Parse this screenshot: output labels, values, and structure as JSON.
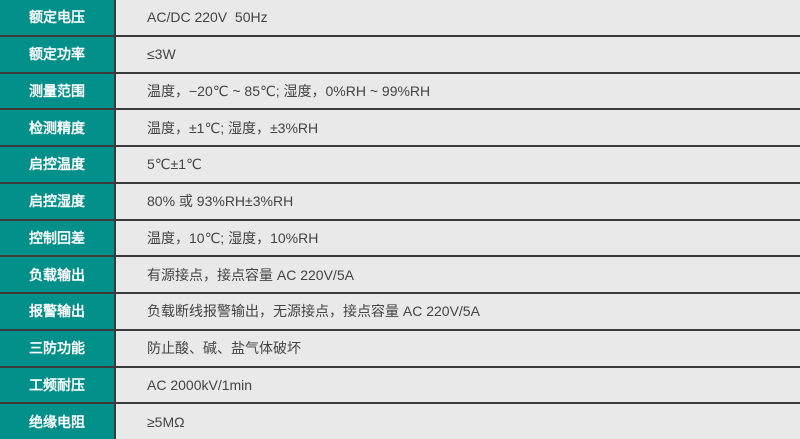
{
  "colors": {
    "label_bg": "#04908a",
    "value_bg": "#e9e9e9",
    "border": "#3a3a3a"
  },
  "rows": [
    {
      "label": "额定电压",
      "value": "AC/DC 220V  50Hz"
    },
    {
      "label": "额定功率",
      "value": "≤3W"
    },
    {
      "label": "测量范围",
      "value": "温度，−20℃ ~ 85℃; 湿度，0%RH ~ 99%RH"
    },
    {
      "label": "检测精度",
      "value": "温度，±1℃; 湿度，±3%RH"
    },
    {
      "label": "启控温度",
      "value": "5℃±1℃"
    },
    {
      "label": "启控湿度",
      "value": "80% 或 93%RH±3%RH"
    },
    {
      "label": "控制回差",
      "value": "温度，10℃; 湿度，10%RH"
    },
    {
      "label": "负载输出",
      "value": "有源接点，接点容量 AC 220V/5A"
    },
    {
      "label": "报警输出",
      "value": "负载断线报警输出，无源接点，接点容量 AC 220V/5A"
    },
    {
      "label": "三防功能",
      "value": "防止酸、碱、盐气体破坏"
    },
    {
      "label": "工频耐压",
      "value": "AC 2000kV/1min"
    },
    {
      "label": "绝缘电阻",
      "value": "≥5MΩ"
    }
  ]
}
